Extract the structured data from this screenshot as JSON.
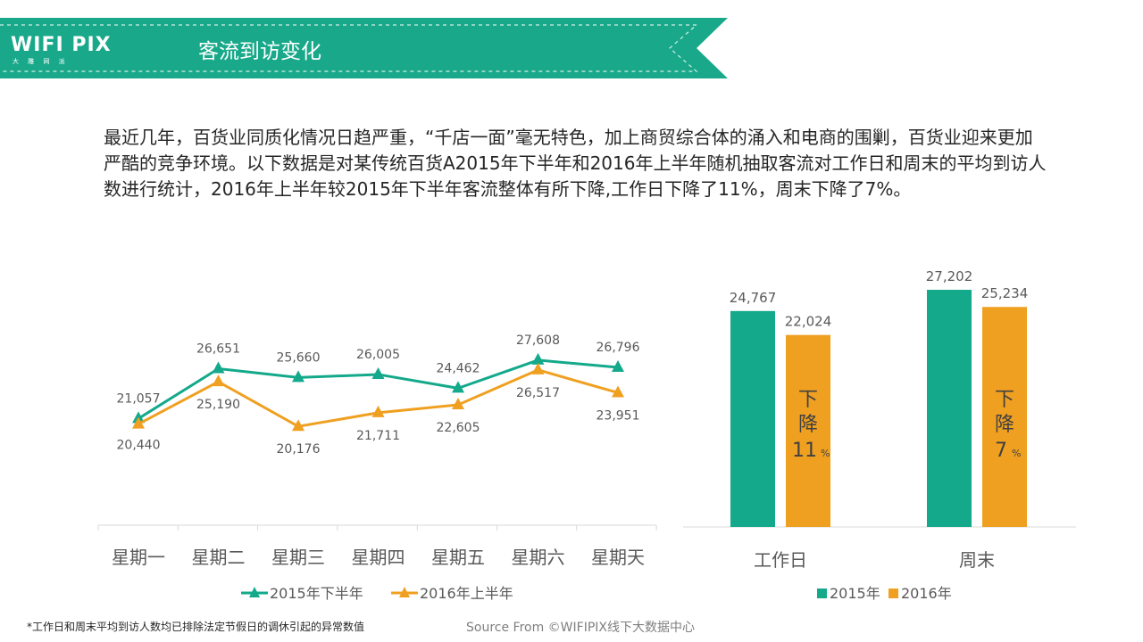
{
  "header": {
    "logo_text": "WIFI PIX",
    "logo_sub": "大 雕 网 派",
    "title": "客流到访变化"
  },
  "intro_text": "最近几年，百货业同质化情况日趋严重，“千店一面”毫无特色，加上商贸综合体的涌入和电商的围剿，百货业迎来更加严酷的竞争环境。以下数据是对某传统百货A2015年下半年和2016年上半年随机抽取客流对工作日和周末的平均到访人数进行统计，2016年上半年较2015年下半年客流整体有所下降,工作日下降了11%，周末下降了7%。",
  "colors": {
    "banner": "#19a98a",
    "series2015": "#13a98a",
    "series2016": "#f0a020"
  },
  "chart_data": [
    {
      "type": "line",
      "categories": [
        "星期一",
        "星期二",
        "星期三",
        "星期四",
        "星期五",
        "星期六",
        "星期天"
      ],
      "series": [
        {
          "name": "2015年下半年",
          "values": [
            21057,
            26651,
            25660,
            26005,
            24462,
            27608,
            26796
          ],
          "labels": [
            "21,057",
            "26,651",
            "25,660",
            "26,005",
            "24,462",
            "27,608",
            "26,796"
          ]
        },
        {
          "name": "2016年上半年",
          "values": [
            20440,
            25190,
            20176,
            21711,
            22605,
            26517,
            23951
          ],
          "labels": [
            "20,440",
            "25,190",
            "20,176",
            "21,711",
            "22,605",
            "26,517",
            "23,951"
          ]
        }
      ],
      "grid": false,
      "legend": "bottom"
    },
    {
      "type": "bar",
      "categories": [
        "工作日",
        "周末"
      ],
      "series": [
        {
          "name": "2015年",
          "values": [
            24767,
            27202
          ],
          "labels": [
            "24,767",
            "27,202"
          ]
        },
        {
          "name": "2016年",
          "values": [
            22024,
            25234
          ],
          "labels": [
            "22,024",
            "25,234"
          ]
        }
      ],
      "annotations": [
        {
          "text": "下降",
          "value": "11",
          "unit": "%"
        },
        {
          "text": "下降",
          "value": "7",
          "unit": "%"
        }
      ],
      "ylim": [
        0,
        27202
      ],
      "legend": "bottom"
    }
  ],
  "footnote": "*工作日和周末平均到访人数均已排除法定节假日的调休引起的异常数值",
  "source": "Source From ©WIFIPIX线下大数据中心"
}
